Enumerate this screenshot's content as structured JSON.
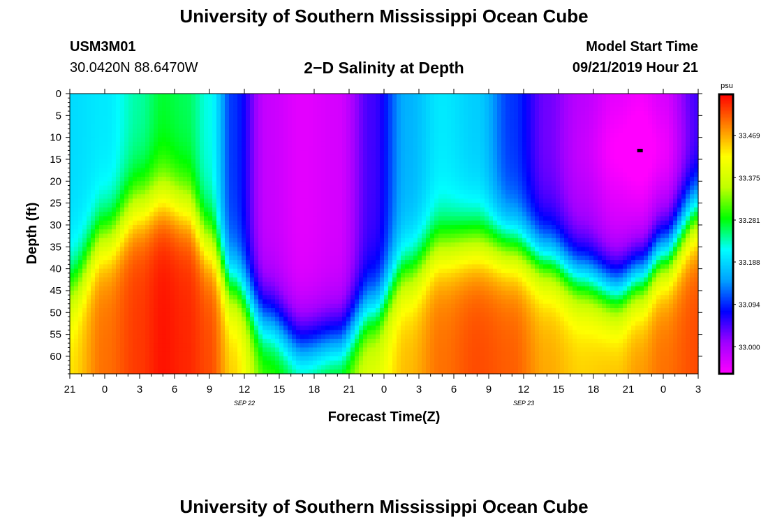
{
  "page": {
    "title_top": "University of Southern Mississippi Ocean Cube",
    "title_bottom": "University of Southern Mississippi Ocean Cube",
    "station_id": "USM3M01",
    "station_coords": "30.0420N 88.6470W",
    "plot_title": "2−D Salinity at Depth",
    "model_start_label": "Model Start Time",
    "model_start_value": "09/21/2019 Hour 21"
  },
  "chart_data": {
    "type": "heatmap",
    "title": "2−D Salinity at Depth",
    "xlabel": "Forecast Time(Z)",
    "ylabel": "Depth (ft)",
    "x_tick_labels": [
      "21",
      "0",
      "3",
      "6",
      "9",
      "12",
      "15",
      "18",
      "21",
      "0",
      "3",
      "6",
      "9",
      "12",
      "15",
      "18",
      "21",
      "0",
      "3"
    ],
    "x_range_hours": [
      0,
      54
    ],
    "date_labels": [
      {
        "text": "SEP 22",
        "hour": 15
      },
      {
        "text": "SEP 23",
        "hour": 39
      }
    ],
    "y_ticks": [
      0,
      5,
      10,
      15,
      20,
      25,
      30,
      35,
      40,
      45,
      50,
      55,
      60
    ],
    "ylim": [
      0,
      64
    ],
    "colorbar": {
      "unit": "psu",
      "tick_labels": [
        "33.469",
        "33.375",
        "33.281",
        "33.188",
        "33.094",
        "33.000"
      ],
      "tick_values": [
        33.469,
        33.375,
        33.281,
        33.188,
        33.094,
        33.0
      ],
      "range": [
        32.94,
        33.56
      ],
      "colors": [
        "#ff00ff",
        "#a000ff",
        "#0000ff",
        "#00a0ff",
        "#00ffff",
        "#00ff00",
        "#c0ff00",
        "#ffff00",
        "#ff8000",
        "#ff0000"
      ]
    },
    "marker": {
      "hour": 49,
      "depth": 13
    },
    "profiles": [
      {
        "hour": 0,
        "surface": 33.19,
        "bottom": 33.44,
        "transition_depth": 44
      },
      {
        "hour": 3,
        "surface": 33.2,
        "bottom": 33.5,
        "transition_depth": 33
      },
      {
        "hour": 6,
        "surface": 33.24,
        "bottom": 33.53,
        "transition_depth": 26
      },
      {
        "hour": 8,
        "surface": 33.27,
        "bottom": 33.55,
        "transition_depth": 24
      },
      {
        "hour": 10,
        "surface": 33.26,
        "bottom": 33.54,
        "transition_depth": 26
      },
      {
        "hour": 12,
        "surface": 33.22,
        "bottom": 33.52,
        "transition_depth": 34
      },
      {
        "hour": 14,
        "surface": 33.1,
        "bottom": 33.45,
        "transition_depth": 44
      },
      {
        "hour": 17,
        "surface": 32.98,
        "bottom": 33.32,
        "transition_depth": 52
      },
      {
        "hour": 20,
        "surface": 32.96,
        "bottom": 33.3,
        "transition_depth": 58
      },
      {
        "hour": 23,
        "surface": 32.97,
        "bottom": 33.33,
        "transition_depth": 57
      },
      {
        "hour": 26,
        "surface": 33.05,
        "bottom": 33.4,
        "transition_depth": 50
      },
      {
        "hour": 29,
        "surface": 33.16,
        "bottom": 33.46,
        "transition_depth": 41
      },
      {
        "hour": 32,
        "surface": 33.2,
        "bottom": 33.5,
        "transition_depth": 35
      },
      {
        "hour": 35,
        "surface": 33.18,
        "bottom": 33.52,
        "transition_depth": 34
      },
      {
        "hour": 38,
        "surface": 33.1,
        "bottom": 33.51,
        "transition_depth": 35
      },
      {
        "hour": 41,
        "surface": 33.03,
        "bottom": 33.47,
        "transition_depth": 38
      },
      {
        "hour": 44,
        "surface": 32.99,
        "bottom": 33.45,
        "transition_depth": 42
      },
      {
        "hour": 47,
        "surface": 32.96,
        "bottom": 33.46,
        "transition_depth": 45
      },
      {
        "hour": 49,
        "surface": 32.95,
        "bottom": 33.48,
        "transition_depth": 42
      },
      {
        "hour": 51,
        "surface": 32.97,
        "bottom": 33.5,
        "transition_depth": 37
      },
      {
        "hour": 54,
        "surface": 33.05,
        "bottom": 33.52,
        "transition_depth": 28
      }
    ]
  }
}
